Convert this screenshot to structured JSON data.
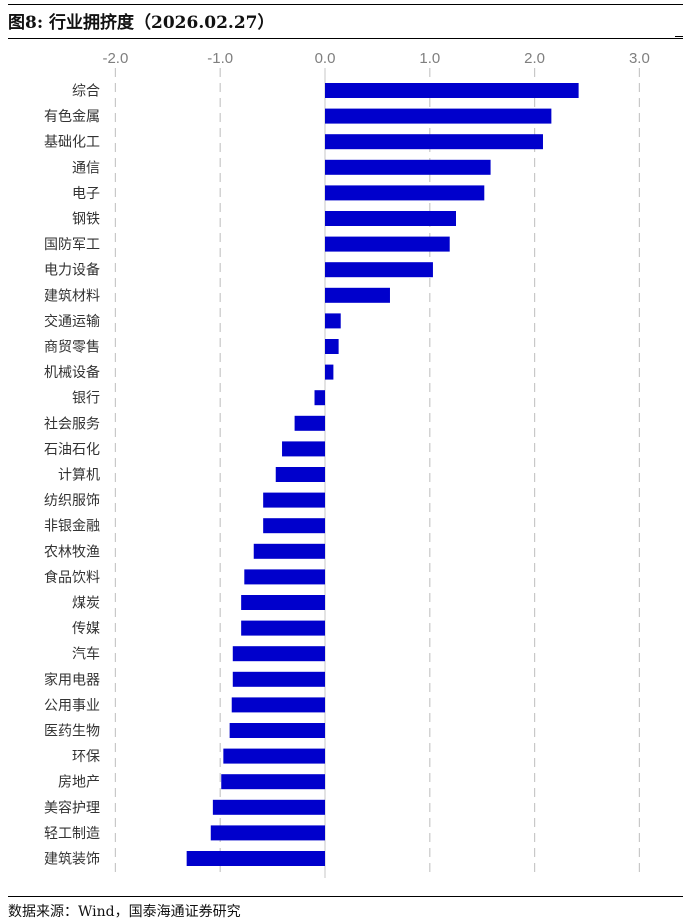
{
  "header": {
    "title": "图8:  行业拥挤度（2026.02.27）"
  },
  "footer": {
    "source": "数据来源：Wind，国泰海通证券研究"
  },
  "colors": {
    "bar": "#0000CC",
    "grid": "#c8c8c8",
    "tick_text": "#7f7f7f"
  },
  "chart_data": {
    "type": "bar",
    "orientation": "horizontal",
    "xlim": [
      -2.0,
      3.0
    ],
    "xticks": [
      "-2.0",
      "-1.0",
      "0.0",
      "1.0",
      "2.0",
      "3.0"
    ],
    "tick_position": "top",
    "grid": "vertical dashed",
    "categories": [
      "综合",
      "有色金属",
      "基础化工",
      "通信",
      "电子",
      "钢铁",
      "国防军工",
      "电力设备",
      "建筑材料",
      "交通运输",
      "商贸零售",
      "机械设备",
      "银行",
      "社会服务",
      "石油石化",
      "计算机",
      "纺织服饰",
      "非银金融",
      "农林牧渔",
      "食品饮料",
      "煤炭",
      "传媒",
      "汽车",
      "家用电器",
      "公用事业",
      "医药生物",
      "环保",
      "房地产",
      "美容护理",
      "轻工制造",
      "建筑装饰"
    ],
    "values": [
      2.42,
      2.16,
      2.08,
      1.58,
      1.52,
      1.25,
      1.19,
      1.03,
      0.62,
      0.15,
      0.13,
      0.08,
      -0.1,
      -0.29,
      -0.41,
      -0.47,
      -0.59,
      -0.59,
      -0.68,
      -0.77,
      -0.8,
      -0.8,
      -0.88,
      -0.88,
      -0.89,
      -0.91,
      -0.97,
      -0.99,
      -1.07,
      -1.09,
      -1.32
    ]
  }
}
